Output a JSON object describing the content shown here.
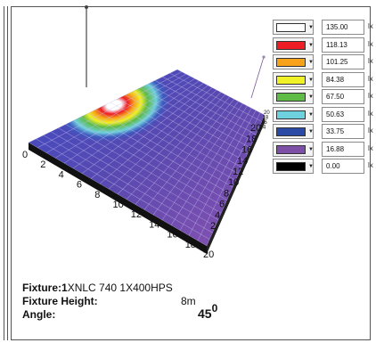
{
  "legend": {
    "unit": "lx",
    "items": [
      {
        "color": "#ffffff",
        "value": "135.00"
      },
      {
        "color": "#ee1c24",
        "value": "118.13"
      },
      {
        "color": "#f7a21a",
        "value": "101.25"
      },
      {
        "color": "#f1f128",
        "value": "84.38"
      },
      {
        "color": "#5dbb46",
        "value": "67.50"
      },
      {
        "color": "#6fd0de",
        "value": "50.63"
      },
      {
        "color": "#2a4aa6",
        "value": "33.75"
      },
      {
        "color": "#7d4fa6",
        "value": "16.88"
      },
      {
        "color": "#000000",
        "value": "0.00"
      }
    ]
  },
  "axes": {
    "x_ticks": [
      "0",
      "2",
      "4",
      "6",
      "8",
      "10",
      "12",
      "14",
      "16",
      "18",
      "20"
    ],
    "y_ticks": [
      "20",
      "18",
      "16",
      "14",
      "12",
      "10",
      "8",
      "6",
      "4",
      "2"
    ],
    "y_ticks_small": [
      "20",
      "18",
      "16",
      "14"
    ]
  },
  "info": {
    "fixture_label": "Fixture:",
    "fixture_count": "1",
    "fixture_name": "XNLC  740 1X400HPS",
    "height_label": "Fixture Height:",
    "height_value": "8m",
    "angle_label": "Angle:",
    "angle_value": "45",
    "angle_sup": "0"
  }
}
